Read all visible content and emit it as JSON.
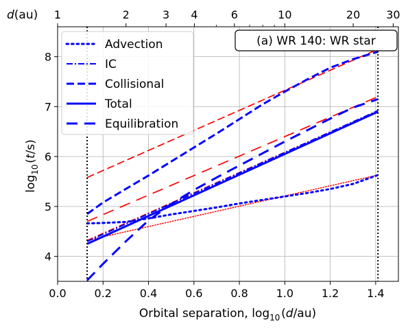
{
  "chart_data": {
    "type": "line",
    "annotation": "(a) WR 140: WR star",
    "xlabel": "Orbital separation, log$_{10}$$(d$/au)",
    "ylabel": "log$_{10}$$(t$/s)",
    "top_label": "$d$(au)",
    "xlim": [
      0.0,
      1.5
    ],
    "ylim": [
      3.5,
      8.6
    ],
    "grid": true,
    "legend_position": "top-left",
    "x_ticks": [
      0.0,
      0.2,
      0.4,
      0.6,
      0.8,
      1.0,
      1.2,
      1.4
    ],
    "x_tick_labels": [
      "0.0",
      "0.2",
      "0.4",
      "0.6",
      "0.8",
      "1.0",
      "1.2",
      "1.4"
    ],
    "y_ticks": [
      4,
      5,
      6,
      7,
      8
    ],
    "y_tick_labels": [
      "4",
      "5",
      "6",
      "7",
      "8"
    ],
    "top_ticks": [
      1,
      2,
      3,
      4,
      6,
      10,
      20,
      30
    ],
    "top_tick_labels": [
      "1",
      "2",
      "3",
      "4",
      "6",
      "10",
      "20",
      "30"
    ],
    "top_minor_ticks": [
      5,
      7,
      8,
      9
    ],
    "vlines": [
      0.13,
      1.41
    ],
    "legend": [
      {
        "name": "Advection",
        "style": "dotted"
      },
      {
        "name": "IC",
        "style": "dashdot"
      },
      {
        "name": "Collisional",
        "style": "dashed"
      },
      {
        "name": "Total",
        "style": "solid"
      },
      {
        "name": "Equilibration",
        "style": "longdash"
      }
    ],
    "series": [
      {
        "key": "advection",
        "color": "#0000ff",
        "style": "dotted",
        "width": 3,
        "x": [
          0.13,
          0.2,
          0.3,
          0.4,
          0.5,
          0.6,
          0.7,
          0.8,
          0.9,
          1.0,
          1.1,
          1.2,
          1.3,
          1.41
        ],
        "y": [
          4.66,
          4.67,
          4.69,
          4.76,
          4.84,
          4.91,
          4.98,
          5.06,
          5.13,
          5.2,
          5.27,
          5.35,
          5.45,
          5.63
        ]
      },
      {
        "key": "ic",
        "color": "#0000ff",
        "style": "dashdot",
        "width": 2,
        "x": [
          0.13,
          1.41
        ],
        "y": [
          4.3,
          6.92
        ]
      },
      {
        "key": "collisional",
        "color": "#0000ff",
        "style": "dashed",
        "width": 3,
        "x": [
          0.13,
          0.2,
          0.3,
          0.4,
          0.5,
          0.6,
          0.7,
          0.8,
          0.9,
          1.0,
          1.1,
          1.2,
          1.3,
          1.41
        ],
        "y": [
          4.85,
          5.08,
          5.35,
          5.62,
          5.9,
          6.18,
          6.46,
          6.75,
          7.04,
          7.3,
          7.55,
          7.78,
          7.95,
          8.1
        ]
      },
      {
        "key": "total",
        "color": "#0000ff",
        "style": "solid",
        "width": 3,
        "x": [
          0.13,
          1.41
        ],
        "y": [
          4.25,
          6.9
        ]
      },
      {
        "key": "equilibration",
        "color": "#0000ff",
        "style": "longdash",
        "width": 3,
        "x": [
          0.13,
          0.2,
          0.3,
          0.4,
          0.5,
          0.6,
          0.7,
          0.8,
          0.9,
          1.0,
          1.1,
          1.2,
          1.3,
          1.41
        ],
        "y": [
          3.52,
          3.85,
          4.3,
          4.72,
          5.05,
          5.33,
          5.58,
          5.82,
          6.06,
          6.3,
          6.53,
          6.76,
          6.98,
          7.15
        ]
      },
      {
        "key": "red-advection",
        "color": "#ff0000",
        "style": "dotted",
        "width": 1.5,
        "x": [
          0.13,
          1.41
        ],
        "y": [
          4.32,
          5.63
        ]
      },
      {
        "key": "red-collisional",
        "color": "#ff0000",
        "style": "dashed",
        "width": 1.7,
        "x": [
          0.13,
          1.41
        ],
        "y": [
          5.58,
          8.15
        ]
      },
      {
        "key": "red-ic",
        "color": "#ff0000",
        "style": "dashdot",
        "width": 1.5,
        "x": [
          0.13,
          1.41
        ],
        "y": [
          4.32,
          6.92
        ]
      },
      {
        "key": "red-equilibration",
        "color": "#ff0000",
        "style": "longdash",
        "width": 1.7,
        "x": [
          0.13,
          1.41
        ],
        "y": [
          4.7,
          7.2
        ]
      }
    ]
  }
}
